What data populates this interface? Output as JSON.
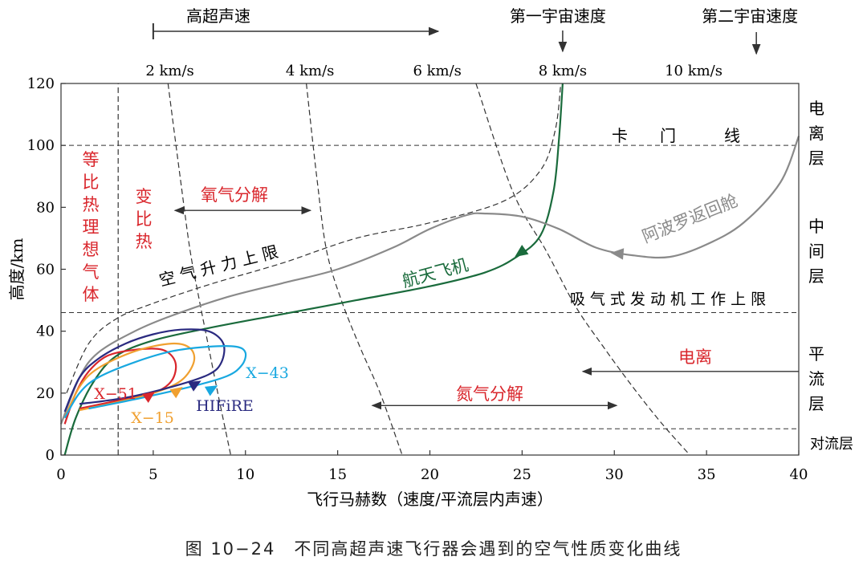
{
  "caption": "图 10−24　不同高超声速飞行器会遇到的空气性质变化曲线",
  "colors": {
    "axis": "#333333",
    "red": "#d9262c",
    "orange": "#f0a030",
    "navy": "#2a2a80",
    "cyan": "#18a8e0",
    "green": "#1a6b3c",
    "gray": "#8a8a8a",
    "dashed": "#333333"
  },
  "chart_data": {
    "type": "line",
    "xlabel": "飞行马赫数（速度/平流层内声速）",
    "ylabel": "高度/km",
    "xlim": [
      0,
      40
    ],
    "ylim": [
      0,
      120
    ],
    "xticks": [
      0,
      5,
      10,
      15,
      20,
      25,
      30,
      35,
      40
    ],
    "yticks": [
      0,
      20,
      40,
      60,
      80,
      100,
      120
    ],
    "top_axis": {
      "ticks": [
        {
          "label": "2 km/s",
          "mach": 5.9
        },
        {
          "label": "4 km/s",
          "mach": 13.5
        },
        {
          "label": "6 km/s",
          "mach": 20.4
        },
        {
          "label": "8 km/s",
          "mach": 27.2
        },
        {
          "label": "10 km/s",
          "mach": 34.3
        }
      ],
      "hypersonic_label": "高超声速",
      "hypersonic_start_mach": 5,
      "first_cosmic_label": "第一宇宙速度",
      "first_cosmic_mach": 27.2,
      "second_cosmic_label": "第二宇宙速度",
      "second_cosmic_mach": 37.7
    },
    "horizontal_lines": [
      {
        "y": 100,
        "label": "卡　　门　　　线"
      },
      {
        "y": 46,
        "label": "吸 气 式 发 动 机 工 作 上 限"
      },
      {
        "y": 8.5,
        "label": ""
      }
    ],
    "right_labels": [
      {
        "text": "电离层",
        "y": 104
      },
      {
        "text": "中间层",
        "y": 66
      },
      {
        "text": "平流层",
        "y": 27
      },
      {
        "text": "对流层",
        "y": 4
      }
    ],
    "regions": [
      {
        "text": "等比热理想气体",
        "color": "red"
      },
      {
        "text": "变比热",
        "color": "red"
      },
      {
        "text": "氧气分解",
        "color": "red",
        "from": 6,
        "to": 13.7,
        "y": 79
      },
      {
        "text": "氮气分解",
        "color": "red",
        "from": 16.7,
        "to": 30.3,
        "y": 16
      },
      {
        "text": "电离",
        "color": "red",
        "from": 40,
        "to": 28.2,
        "y": 27
      }
    ],
    "dashed_curves": [
      {
        "name": "",
        "points": [
          [
            3.1,
            0
          ],
          [
            3.1,
            120
          ]
        ]
      },
      {
        "name": "",
        "points": [
          [
            5.8,
            120
          ],
          [
            6.5,
            88
          ],
          [
            7.0,
            66
          ],
          [
            7.5,
            50
          ],
          [
            8.0,
            35
          ],
          [
            8.5,
            20
          ],
          [
            9.2,
            0
          ]
        ]
      },
      {
        "name": "",
        "points": [
          [
            13.3,
            120
          ],
          [
            13.9,
            88
          ],
          [
            14.4,
            66
          ],
          [
            15.2,
            50
          ],
          [
            16.2,
            35
          ],
          [
            17.3,
            20
          ],
          [
            18.5,
            0
          ]
        ]
      },
      {
        "name": "",
        "points": [
          [
            22.5,
            120
          ],
          [
            24.5,
            85
          ],
          [
            26.3,
            66
          ],
          [
            27.9,
            48
          ],
          [
            29.4,
            35
          ],
          [
            31.0,
            22
          ],
          [
            32.6,
            10
          ],
          [
            34.1,
            0
          ]
        ]
      },
      {
        "name": "空 气 升 力 上 限",
        "points": [
          [
            0.3,
            20
          ],
          [
            1.5,
            36
          ],
          [
            3,
            44
          ],
          [
            5,
            49
          ],
          [
            8,
            55
          ],
          [
            12,
            62
          ],
          [
            16,
            70
          ],
          [
            20,
            75
          ],
          [
            24,
            82
          ],
          [
            26,
            92
          ],
          [
            26.8,
            105
          ],
          [
            27.1,
            120
          ]
        ]
      }
    ],
    "series": [
      {
        "name": "航天飞机",
        "color": "green",
        "points": [
          [
            0.2,
            0
          ],
          [
            0.8,
            12
          ],
          [
            1.8,
            24
          ],
          [
            3,
            32
          ],
          [
            5,
            37
          ],
          [
            8,
            41
          ],
          [
            12,
            45.5
          ],
          [
            16,
            50
          ],
          [
            20,
            54.5
          ],
          [
            23,
            59
          ],
          [
            24.7,
            64
          ],
          [
            26,
            71
          ],
          [
            26.7,
            85
          ],
          [
            27,
            102
          ],
          [
            27.2,
            120
          ]
        ]
      },
      {
        "name": "阿波罗返回舱",
        "color": "gray",
        "points": [
          [
            0,
            10
          ],
          [
            1,
            25
          ],
          [
            2,
            33
          ],
          [
            4,
            40
          ],
          [
            6,
            45
          ],
          [
            9,
            51
          ],
          [
            12,
            55.5
          ],
          [
            15,
            60
          ],
          [
            18,
            67
          ],
          [
            20,
            73
          ],
          [
            22,
            77.5
          ],
          [
            23,
            78
          ],
          [
            25,
            77
          ],
          [
            27,
            73
          ],
          [
            29,
            67
          ],
          [
            31,
            64.5
          ],
          [
            33,
            64
          ],
          [
            35,
            68
          ],
          [
            37,
            75
          ],
          [
            39,
            88
          ],
          [
            40,
            103
          ]
        ]
      },
      {
        "name": "X−51",
        "color": "red",
        "points": [
          [
            0.2,
            10
          ],
          [
            0.8,
            20
          ],
          [
            1.5,
            27
          ],
          [
            2.5,
            32
          ],
          [
            4,
            34
          ],
          [
            5.5,
            34
          ],
          [
            6.2,
            30
          ],
          [
            6,
            24
          ],
          [
            5,
            20
          ],
          [
            3,
            17.5
          ],
          [
            1,
            15
          ]
        ]
      },
      {
        "name": "X−15",
        "color": "orange",
        "points": [
          [
            0.2,
            12
          ],
          [
            1,
            22
          ],
          [
            2,
            28
          ],
          [
            4,
            33.5
          ],
          [
            6,
            36
          ],
          [
            7,
            34.5
          ],
          [
            7.2,
            30
          ],
          [
            6.5,
            24
          ],
          [
            5,
            20
          ],
          [
            3,
            17
          ],
          [
            1,
            14.5
          ]
        ]
      },
      {
        "name": "HIFiRE",
        "color": "navy",
        "points": [
          [
            0.2,
            14
          ],
          [
            1,
            25
          ],
          [
            2,
            31
          ],
          [
            3.5,
            36
          ],
          [
            5,
            39
          ],
          [
            6.5,
            40.5
          ],
          [
            8,
            40
          ],
          [
            8.8,
            36
          ],
          [
            8.7,
            30
          ],
          [
            8,
            26
          ],
          [
            6,
            22
          ],
          [
            3.5,
            18.5
          ],
          [
            1,
            16.5
          ]
        ]
      },
      {
        "name": "X−43",
        "color": "cyan",
        "points": [
          [
            0.2,
            12
          ],
          [
            1,
            20
          ],
          [
            2,
            25
          ],
          [
            4,
            30
          ],
          [
            6,
            33.5
          ],
          [
            8,
            35
          ],
          [
            9.5,
            35
          ],
          [
            10,
            33
          ],
          [
            9.8,
            29
          ],
          [
            9,
            25.5
          ],
          [
            7,
            22
          ],
          [
            4,
            18
          ],
          [
            1.5,
            15
          ]
        ]
      }
    ],
    "series_labels": [
      {
        "name": "航天飞机",
        "color": "green",
        "rotate": -15
      },
      {
        "name": "阿波罗返回舱",
        "color": "gray",
        "rotate": -22
      },
      {
        "name": "X−51",
        "color": "red"
      },
      {
        "name": "X−15",
        "color": "orange"
      },
      {
        "name": "HIFiRE",
        "color": "navy"
      },
      {
        "name": "X−43",
        "color": "cyan"
      }
    ]
  }
}
